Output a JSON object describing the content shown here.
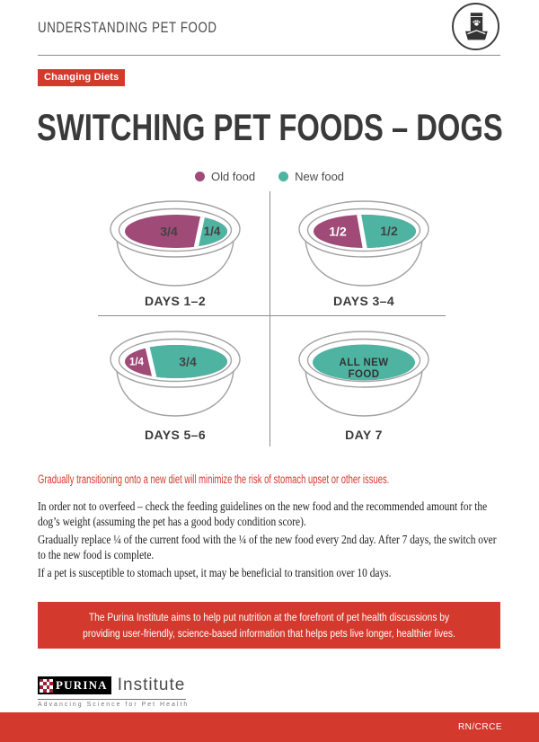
{
  "header": {
    "title": "UNDERSTANDING PET FOOD",
    "icon": "pet-food-bag-in-bowl"
  },
  "badge": "Changing Diets",
  "title": "SWITCHING PET FOODS – DOGS",
  "legend": {
    "old": {
      "label": "Old food",
      "color": "#a04a78"
    },
    "new": {
      "label": "New food",
      "color": "#4fb3a2"
    }
  },
  "chart_data": {
    "type": "bowl-diagram",
    "description": "Proportion of old vs new food in a dog bowl over a 7-day transition",
    "bowls": [
      {
        "label": "DAYS 1–2",
        "old_fraction": "3/4",
        "new_fraction": "1/4",
        "old_value": 0.75,
        "new_value": 0.25
      },
      {
        "label": "DAYS 3–4",
        "old_fraction": "1/2",
        "new_fraction": "1/2",
        "old_value": 0.5,
        "new_value": 0.5
      },
      {
        "label": "DAYS 5–6",
        "old_fraction": "1/4",
        "new_fraction": "3/4",
        "old_value": 0.25,
        "new_value": 0.75
      },
      {
        "label": "DAY 7",
        "all_new_lines": [
          "ALL NEW",
          "FOOD"
        ],
        "old_value": 0,
        "new_value": 1
      }
    ]
  },
  "highlight": "Gradually transitioning onto a new diet will minimize the risk of stomach upset or other issues.",
  "paragraphs": [
    "In order not to overfeed – check the feeding guidelines on the new food and the recommended amount for the dog’s weight (assuming the pet has a good body condition score).",
    "Gradually replace ¼ of the current food with the ¼ of the new food every 2nd day. After 7 days, the switch over to the new food is complete.",
    "If a pet is susceptible to stomach upset, it may be beneficial to transition over 10 days."
  ],
  "callout": "The Purina Institute aims to help put nutrition at the forefront of pet health discussions by providing user-friendly, science-based information that helps pets live longer, healthier lives.",
  "footer": {
    "brand": "PURINA",
    "brand_suffix": "Institute",
    "tagline": "Advancing Science for Pet Health",
    "code": "RN/CRCE"
  },
  "colors": {
    "accent_red": "#d4392d",
    "old_food": "#a04a78",
    "new_food": "#4fb3a2",
    "title_text": "#3a3a3a"
  }
}
